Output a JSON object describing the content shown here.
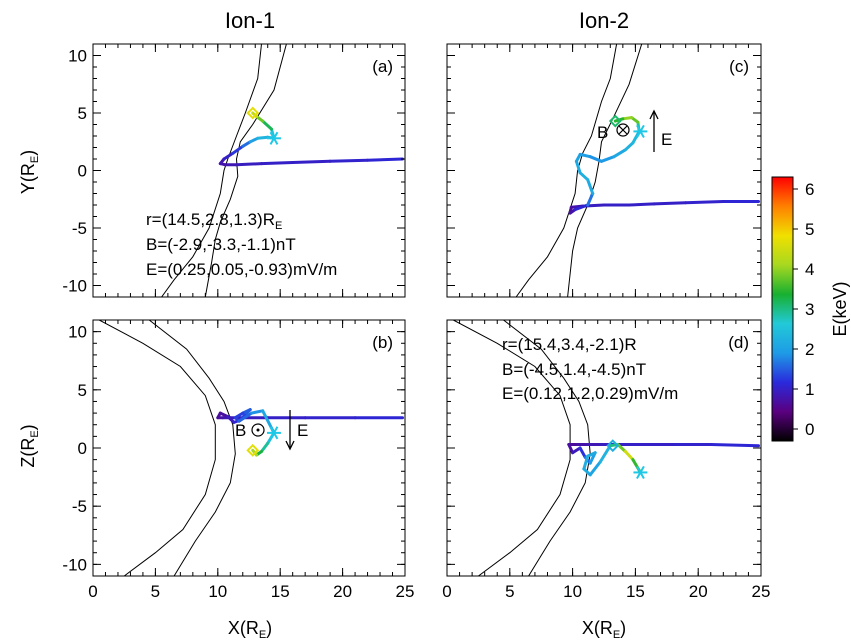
{
  "chart_data": [
    {
      "type": "line",
      "panel": "(a)",
      "column_title": "Ion-1",
      "xlabel": "",
      "ylabel": "Y(R_E)",
      "xlim": [
        0,
        25
      ],
      "ylim": [
        -11,
        11
      ],
      "xticks": [
        "0",
        "5",
        "10",
        "15",
        "20",
        "25"
      ],
      "yticks": [
        "10",
        "5",
        "0",
        "-5",
        "-10"
      ],
      "annotations": [
        "r=(14.5,2.8,1.3)R",
        "E",
        "B=(-2.9,-3.3,-1.1)nT",
        "E=(0.25,0.05,-0.93)mV/m"
      ],
      "trajectory": {
        "x": [
          24.8,
          22,
          19,
          16,
          13.5,
          11.5,
          10.6,
          10.2,
          10.5,
          11.2,
          12,
          12.6,
          13.2,
          14,
          14.5,
          14.3,
          13.6,
          13.1,
          12.8
        ],
        "y": [
          1.0,
          0.9,
          0.8,
          0.7,
          0.6,
          0.5,
          0.5,
          0.6,
          1.0,
          1.5,
          2.1,
          2.5,
          2.8,
          2.9,
          2.8,
          3.6,
          4.3,
          4.7,
          5.0
        ],
        "energy_keV": [
          1.1,
          1.1,
          1.0,
          1.0,
          1.0,
          0.9,
          0.8,
          0.7,
          0.9,
          1.1,
          1.4,
          1.8,
          2.2,
          2.4,
          2.2,
          2.9,
          3.5,
          4.1,
          4.7
        ]
      },
      "start": {
        "x": 14.5,
        "y": 2.8
      },
      "end": {
        "x": 12.8,
        "y": 5.0
      }
    },
    {
      "type": "line",
      "panel": "(b)",
      "column_title": "",
      "xlabel": "X(R_E)",
      "ylabel": "Z(R_E)",
      "xlim": [
        0,
        25
      ],
      "ylim": [
        -11,
        11
      ],
      "xticks": [
        "0",
        "5",
        "10",
        "15",
        "20",
        "25"
      ],
      "yticks": [
        "10",
        "5",
        "0",
        "-5",
        "-10"
      ],
      "annotations": [
        "B",
        "E"
      ],
      "trajectory": {
        "x": [
          24.8,
          21,
          17,
          14,
          12,
          11,
          10.4,
          10.0,
          10.2,
          10.8,
          11.3,
          11.8,
          12.3,
          12.6,
          12.0,
          11.4,
          11.7,
          12.7,
          13.6,
          14.5,
          14.0,
          13.5,
          13.1,
          12.8
        ],
        "y": [
          2.6,
          2.6,
          2.6,
          2.6,
          2.6,
          2.6,
          2.6,
          2.6,
          3.0,
          2.7,
          2.2,
          2.4,
          3.0,
          3.3,
          3.0,
          2.6,
          2.3,
          3.0,
          3.2,
          1.3,
          0.4,
          -0.3,
          -0.6,
          -0.2
        ],
        "energy_keV": [
          1.1,
          1.1,
          1.0,
          1.0,
          0.9,
          0.9,
          0.8,
          0.7,
          0.6,
          0.8,
          1.0,
          1.2,
          1.4,
          1.6,
          1.4,
          1.2,
          1.4,
          1.7,
          2.0,
          2.2,
          2.7,
          3.1,
          3.5,
          4.7
        ]
      },
      "start": {
        "x": 14.5,
        "y": 1.3
      },
      "end": {
        "x": 12.8,
        "y": -0.2
      }
    },
    {
      "type": "line",
      "panel": "(c)",
      "column_title": "Ion-2",
      "xlabel": "",
      "ylabel": "",
      "xlim": [
        0,
        25
      ],
      "ylim": [
        -11,
        11
      ],
      "xticks": [
        "0",
        "5",
        "10",
        "15",
        "20",
        "25"
      ],
      "yticks": [
        "10",
        "5",
        "0",
        "-5",
        "-10"
      ],
      "annotations": [
        "B",
        "E"
      ],
      "trajectory": {
        "x": [
          24.8,
          22,
          19,
          16.5,
          14.5,
          12.5,
          10.8,
          9.9,
          9.8,
          10.2,
          11.2,
          11.6,
          11.2,
          10.6,
          10.3,
          10.6,
          11.4,
          12.3,
          13.3,
          14.2,
          14.8,
          15.3,
          15.2,
          14.7,
          14.0,
          13.4
        ],
        "y": [
          -2.7,
          -2.7,
          -2.8,
          -2.9,
          -3.0,
          -3.0,
          -3.1,
          -3.2,
          -3.7,
          -3.4,
          -3.0,
          -2.0,
          -0.8,
          -0.2,
          0.8,
          1.4,
          1.2,
          0.8,
          1.2,
          1.8,
          2.4,
          3.4,
          4.2,
          4.6,
          4.5,
          4.3
        ],
        "energy_keV": [
          1.1,
          1.1,
          1.0,
          1.0,
          1.0,
          1.0,
          0.9,
          0.7,
          0.6,
          0.9,
          1.3,
          2.0,
          2.3,
          2.2,
          2.1,
          2.0,
          1.9,
          1.8,
          2.0,
          2.2,
          2.3,
          2.4,
          3.3,
          4.2,
          3.8,
          3.1
        ]
      },
      "start": {
        "x": 15.4,
        "y": 3.4
      },
      "end": {
        "x": 13.4,
        "y": 4.3
      }
    },
    {
      "type": "line",
      "panel": "(d)",
      "column_title": "",
      "xlabel": "X(R_E)",
      "ylabel": "",
      "xlim": [
        0,
        25
      ],
      "ylim": [
        -11,
        11
      ],
      "xticks": [
        "0",
        "5",
        "10",
        "15",
        "20",
        "25"
      ],
      "yticks": [
        "10",
        "5",
        "0",
        "-5",
        "-10"
      ],
      "annotations": [
        "r=(15.4,3.4,-2.1)R",
        "B=(-4.5,1.4,-4.5)nT",
        "E=(0.12,1.2,0.29)mV/m"
      ],
      "trajectory": {
        "x": [
          24.8,
          21,
          18,
          15.5,
          13.5,
          12,
          11,
          10.2,
          9.7,
          10.0,
          10.6,
          11.0,
          11.4,
          11.8,
          11.2,
          10.9,
          11.4,
          12.2,
          13.0,
          13.6,
          14.2,
          14.8,
          15.4
        ],
        "y": [
          0.2,
          0.3,
          0.3,
          0.3,
          0.3,
          0.3,
          0.3,
          0.3,
          0.3,
          -0.4,
          0.0,
          -0.8,
          -1.3,
          -0.4,
          -0.7,
          -1.8,
          -2.3,
          -1.2,
          0.2,
          0.3,
          -0.3,
          -1.0,
          -2.1
        ],
        "energy_keV": [
          1.1,
          1.1,
          1.0,
          1.0,
          1.0,
          0.9,
          0.8,
          0.7,
          0.6,
          0.8,
          1.0,
          1.4,
          1.8,
          2.1,
          2.2,
          2.2,
          2.1,
          2.0,
          2.6,
          3.4,
          4.2,
          4.8,
          2.2
        ]
      },
      "start": {
        "x": 15.4,
        "y": -2.1
      },
      "end": {
        "x": 13.2,
        "y": 0.2
      }
    }
  ],
  "colorbar": {
    "label": "E(keV)",
    "range": [
      -0.3,
      6.3
    ],
    "ticks": [
      "6",
      "5",
      "4",
      "3",
      "2",
      "1",
      "0"
    ],
    "colormap": [
      "#000000",
      "#5a0080",
      "#2a2adc",
      "#1e9be6",
      "#22c9d8",
      "#18b030",
      "#a8d820",
      "#f0e000",
      "#ff8000",
      "#ff0000"
    ]
  }
}
